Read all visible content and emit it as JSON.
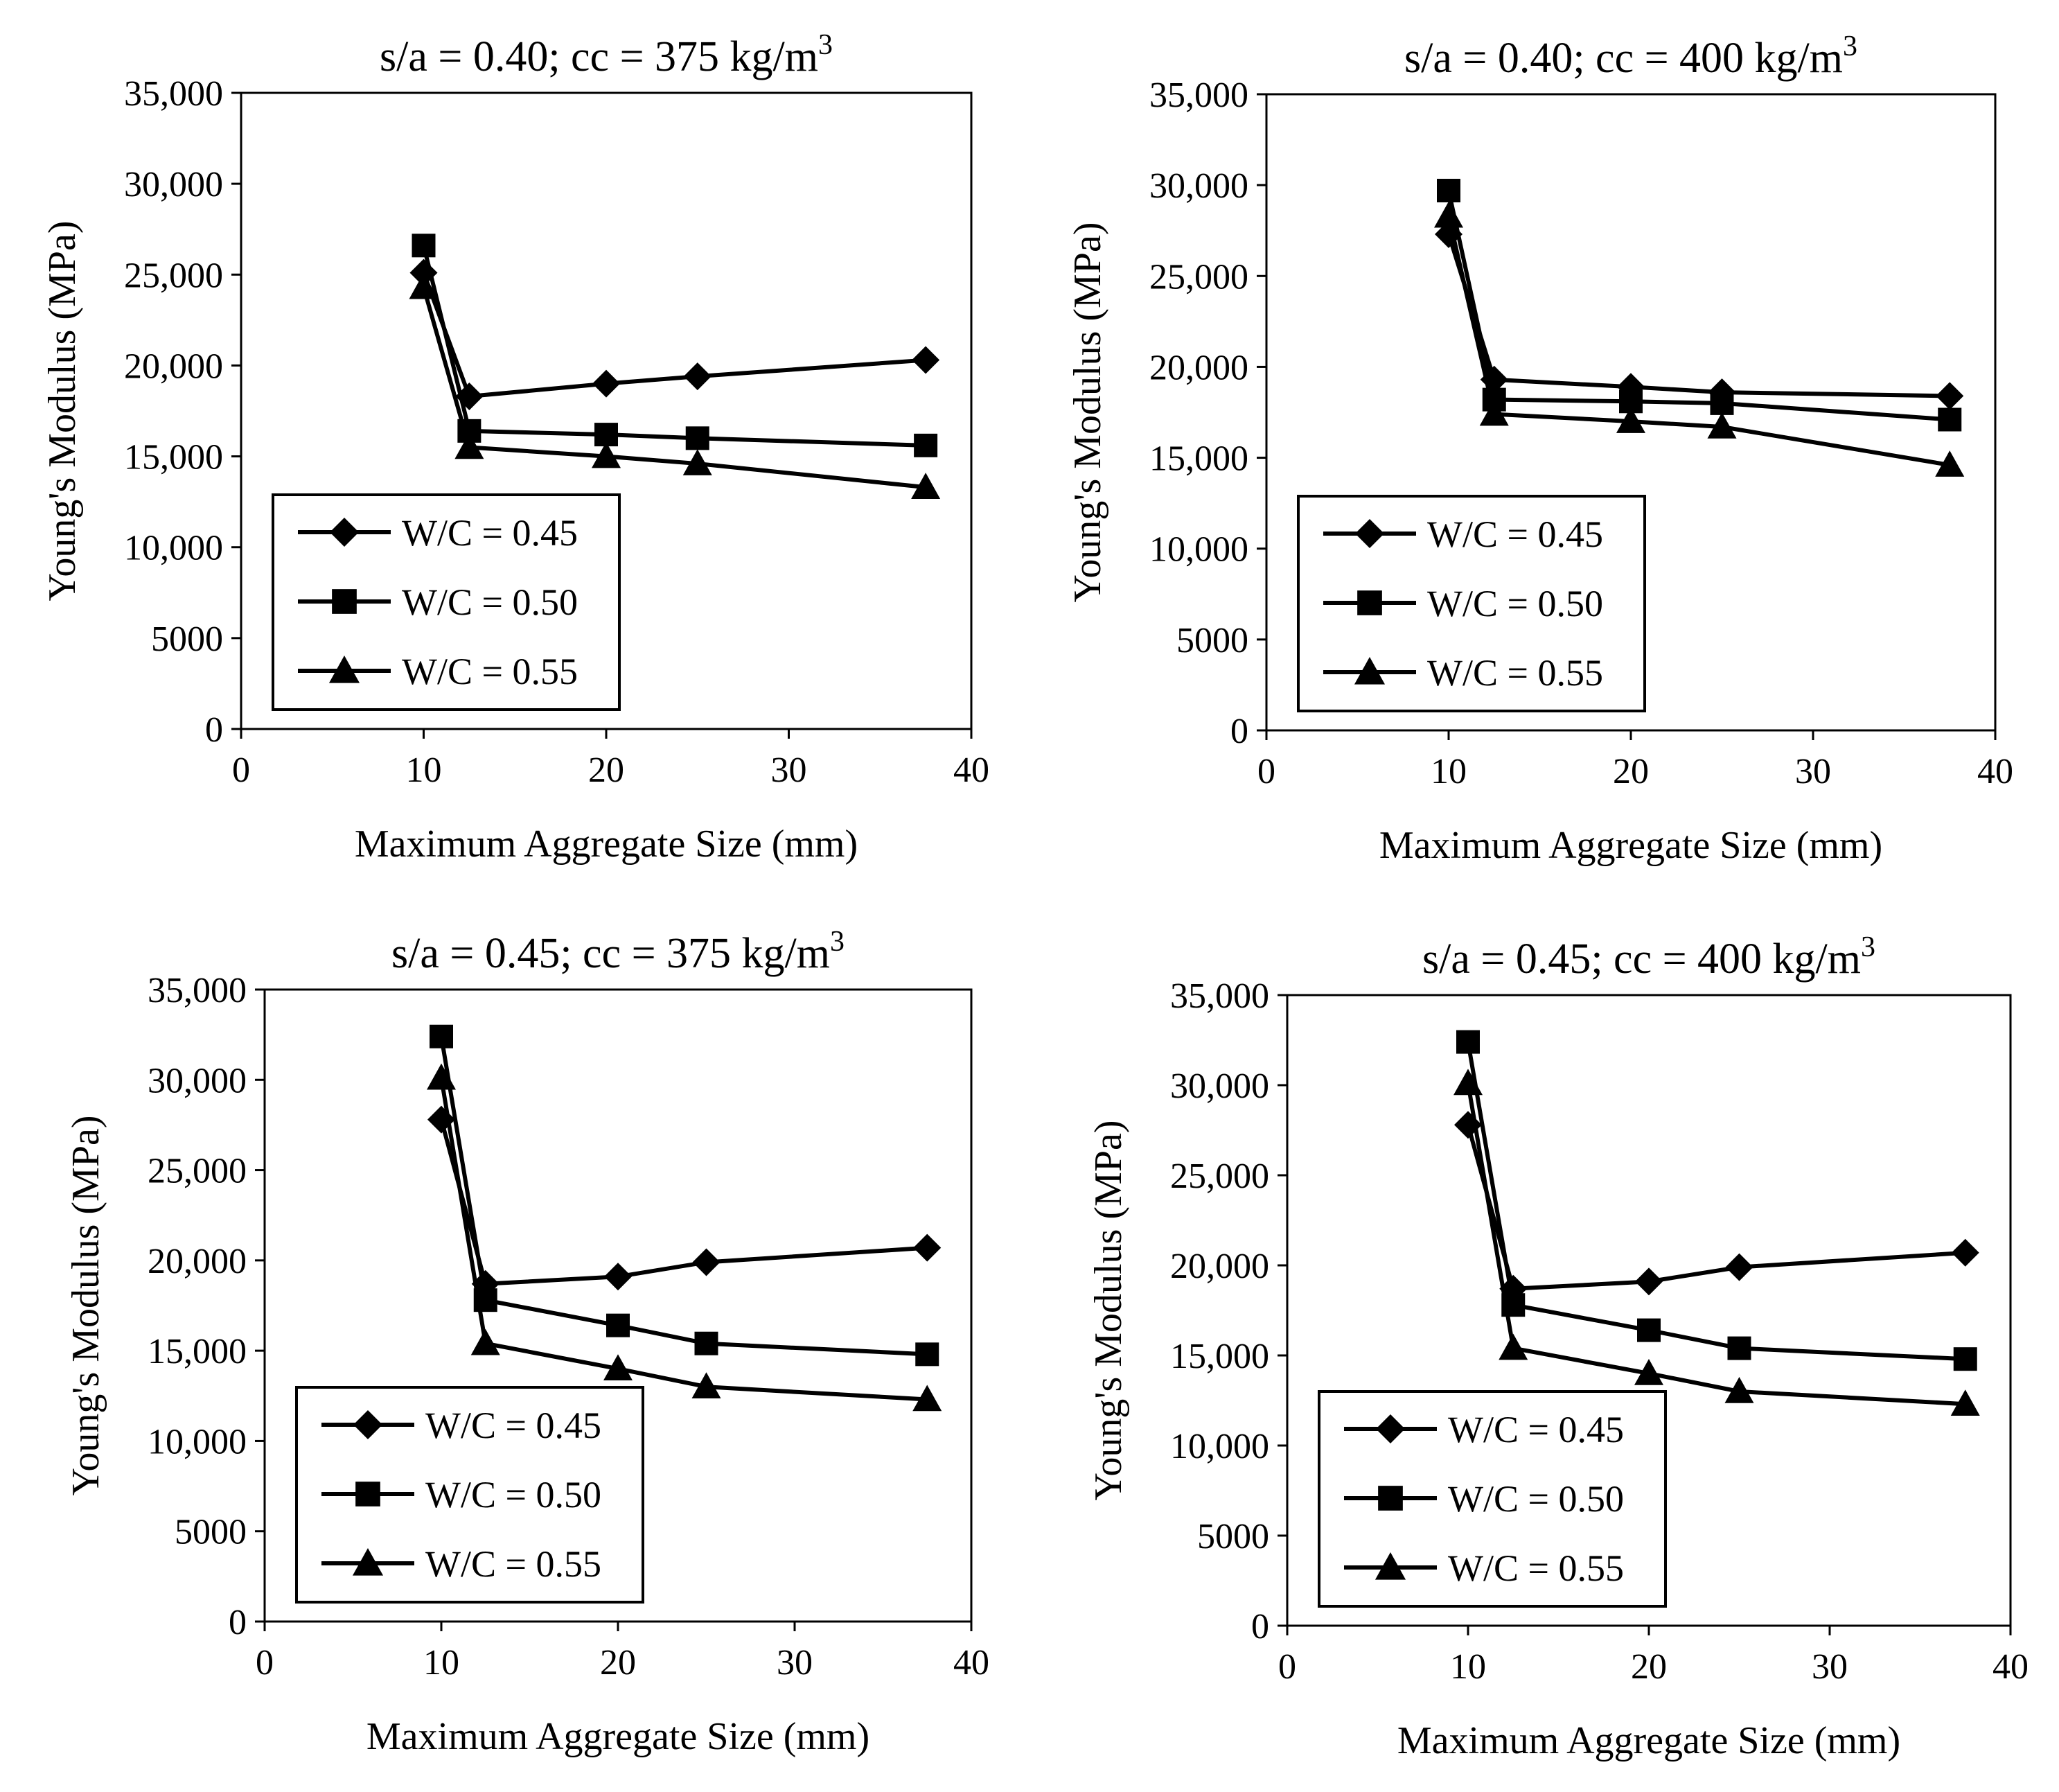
{
  "chart_data": [
    {
      "type": "line",
      "title": "s/a = 0.40; cc = 375 kg/m",
      "title_superscript": "3",
      "xlabel": "Maximum Aggregate Size (mm)",
      "ylabel": "Young's Modulus (MPa)",
      "xlim": [
        0,
        40
      ],
      "ylim": [
        0,
        35000
      ],
      "x_ticks": [
        "0",
        "10",
        "20",
        "30",
        "40"
      ],
      "y_ticks": [
        "0",
        "5000",
        "10,000",
        "15,000",
        "20,000",
        "25,000",
        "30,000",
        "35,000"
      ],
      "grid": false,
      "legend_position": "bottom-left",
      "x": [
        10,
        12.5,
        20,
        25,
        37.5
      ],
      "series": [
        {
          "name": "W/C = 0.45",
          "marker": "diamond",
          "values": [
            25100,
            18300,
            19000,
            19400,
            20300
          ]
        },
        {
          "name": "W/C = 0.50",
          "marker": "square",
          "values": [
            26600,
            16400,
            16200,
            16000,
            15600
          ]
        },
        {
          "name": "W/C = 0.55",
          "marker": "triangle",
          "values": [
            24300,
            15500,
            15000,
            14600,
            13300
          ]
        }
      ]
    },
    {
      "type": "line",
      "title": "s/a = 0.40; cc = 400 kg/m",
      "title_superscript": "3",
      "xlabel": "Maximum Aggregate Size (mm)",
      "ylabel": "Young's Modulus (MPa)",
      "xlim": [
        0,
        40
      ],
      "ylim": [
        0,
        35000
      ],
      "x_ticks": [
        "0",
        "10",
        "20",
        "30",
        "40"
      ],
      "y_ticks": [
        "0",
        "5000",
        "10,000",
        "15,000",
        "20,000",
        "25,000",
        "30,000",
        "35,000"
      ],
      "grid": false,
      "legend_position": "bottom-left",
      "x": [
        10,
        12.5,
        20,
        25,
        37.5
      ],
      "series": [
        {
          "name": "W/C = 0.45",
          "marker": "diamond",
          "values": [
            27300,
            19300,
            18900,
            18600,
            18400
          ]
        },
        {
          "name": "W/C = 0.50",
          "marker": "square",
          "values": [
            29700,
            18200,
            18100,
            18000,
            17100
          ]
        },
        {
          "name": "W/C = 0.55",
          "marker": "triangle",
          "values": [
            28300,
            17400,
            17000,
            16700,
            14600
          ]
        }
      ]
    },
    {
      "type": "line",
      "title": "s/a = 0.45; cc = 375 kg/m",
      "title_superscript": "3",
      "xlabel": "Maximum Aggregate Size (mm)",
      "ylabel": "Young's Modulus (MPa)",
      "xlim": [
        0,
        40
      ],
      "ylim": [
        0,
        35000
      ],
      "x_ticks": [
        "0",
        "10",
        "20",
        "30",
        "40"
      ],
      "y_ticks": [
        "0",
        "5000",
        "10,000",
        "15,000",
        "20,000",
        "25,000",
        "30,000",
        "35,000"
      ],
      "grid": false,
      "legend_position": "bottom-left",
      "x": [
        10,
        12.5,
        20,
        25,
        37.5
      ],
      "series": [
        {
          "name": "W/C = 0.45",
          "marker": "diamond",
          "values": [
            27800,
            18700,
            19100,
            19900,
            20700
          ]
        },
        {
          "name": "W/C = 0.50",
          "marker": "square",
          "values": [
            32400,
            17800,
            16400,
            15400,
            14800
          ]
        },
        {
          "name": "W/C = 0.55",
          "marker": "triangle",
          "values": [
            30100,
            15400,
            14000,
            13000,
            12300
          ]
        }
      ]
    },
    {
      "type": "line",
      "title": "s/a = 0.45; cc = 400 kg/m",
      "title_superscript": "3",
      "xlabel": "Maximum Aggregate Size (mm)",
      "ylabel": "Young's Modulus (MPa)",
      "xlim": [
        0,
        40
      ],
      "ylim": [
        0,
        35000
      ],
      "x_ticks": [
        "0",
        "10",
        "20",
        "30",
        "40"
      ],
      "y_ticks": [
        "0",
        "5000",
        "10,000",
        "15,000",
        "20,000",
        "25,000",
        "30,000",
        "35,000"
      ],
      "grid": false,
      "legend_position": "bottom-left",
      "x": [
        10,
        12.5,
        20,
        25,
        37.5
      ],
      "series": [
        {
          "name": "W/C = 0.45",
          "marker": "diamond",
          "values": [
            27800,
            18700,
            19100,
            19900,
            20700
          ]
        },
        {
          "name": "W/C = 0.50",
          "marker": "square",
          "values": [
            32400,
            17800,
            16400,
            15400,
            14800
          ]
        },
        {
          "name": "W/C = 0.55",
          "marker": "triangle",
          "values": [
            30100,
            15400,
            14000,
            13000,
            12300
          ]
        }
      ]
    }
  ]
}
